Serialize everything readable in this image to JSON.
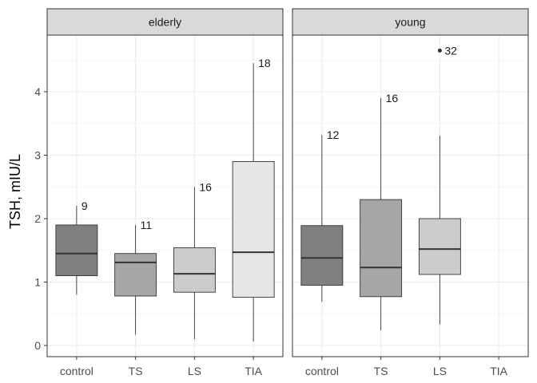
{
  "chart_data": {
    "type": "boxplot",
    "ylabel": "TSH, mIU/L",
    "xlabel": "",
    "categories": [
      "control",
      "TS",
      "LS",
      "TIA"
    ],
    "yticks": [
      0,
      1,
      2,
      3,
      4
    ],
    "ylim": [
      -0.15,
      4.9
    ],
    "grid": true,
    "colors": {
      "control": "#808080",
      "TS": "#a6a6a6",
      "LS": "#cccccc",
      "TIA": "#e6e6e6",
      "strip": "#d9d9d9",
      "grid": "#ebebeb"
    },
    "panels": [
      {
        "name": "elderly",
        "boxes": [
          {
            "category": "control",
            "low": 0.8,
            "q1": 1.1,
            "median": 1.45,
            "q3": 1.9,
            "high": 2.2,
            "label": "9",
            "label_y": 2.2,
            "outliers": []
          },
          {
            "category": "TS",
            "low": 0.17,
            "q1": 0.78,
            "median": 1.31,
            "q3": 1.45,
            "high": 1.9,
            "label": "11",
            "label_y": 1.9,
            "outliers": []
          },
          {
            "category": "LS",
            "low": 0.1,
            "q1": 0.84,
            "median": 1.13,
            "q3": 1.54,
            "high": 2.5,
            "label": "16",
            "label_y": 2.5,
            "outliers": []
          },
          {
            "category": "TIA",
            "low": 0.06,
            "q1": 0.76,
            "median": 1.47,
            "q3": 2.9,
            "high": 4.45,
            "label": "18",
            "label_y": 4.45,
            "outliers": []
          }
        ]
      },
      {
        "name": "young",
        "boxes": [
          {
            "category": "control",
            "low": 0.69,
            "q1": 0.95,
            "median": 1.38,
            "q3": 1.89,
            "high": 3.32,
            "label": "12",
            "label_y": 3.32,
            "outliers": []
          },
          {
            "category": "TS",
            "low": 0.24,
            "q1": 0.77,
            "median": 1.23,
            "q3": 2.3,
            "high": 3.9,
            "label": "16",
            "label_y": 3.9,
            "outliers": []
          },
          {
            "category": "LS",
            "low": 0.33,
            "q1": 1.12,
            "median": 1.52,
            "q3": 2.0,
            "high": 3.31,
            "label": "32",
            "label_y": 4.65,
            "outliers": [
              4.65
            ]
          }
        ]
      }
    ]
  }
}
